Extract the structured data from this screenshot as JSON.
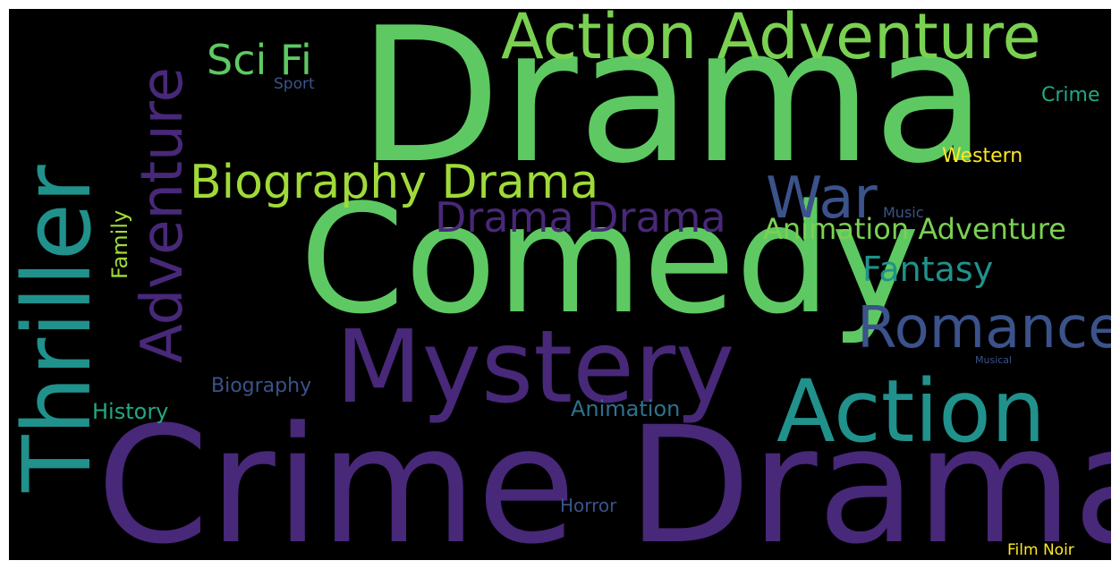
{
  "words": {
    "drama": {
      "text": "Drama",
      "color": "#5ec962"
    },
    "comedy": {
      "text": "Comedy",
      "color": "#5ec962"
    },
    "crime_drama": {
      "text": "Crime Drama",
      "color": "#482878"
    },
    "thriller": {
      "text": "Thriller",
      "color": "#21918c"
    },
    "mystery": {
      "text": "Mystery",
      "color": "#482878"
    },
    "action_adventure": {
      "text": "Action Adventure",
      "color": "#7ad151"
    },
    "action": {
      "text": "Action",
      "color": "#21918c"
    },
    "adventure": {
      "text": "Adventure",
      "color": "#482878"
    },
    "romance": {
      "text": "Romance",
      "color": "#3b528b"
    },
    "biography_drama": {
      "text": "Biography Drama",
      "color": "#a0da39"
    },
    "war": {
      "text": "War",
      "color": "#3b528b"
    },
    "drama_drama": {
      "text": "Drama Drama",
      "color": "#482878"
    },
    "sci_fi": {
      "text": "Sci Fi",
      "color": "#5ec962"
    },
    "animation_adventure": {
      "text": "Animation Adventure",
      "color": "#7ad151"
    },
    "fantasy": {
      "text": "Fantasy",
      "color": "#21918c"
    },
    "family": {
      "text": "Family",
      "color": "#a0da39"
    },
    "history": {
      "text": "History",
      "color": "#22a884"
    },
    "biography": {
      "text": "Biography",
      "color": "#3b528b"
    },
    "animation": {
      "text": "Animation",
      "color": "#2c728e"
    },
    "horror": {
      "text": "Horror",
      "color": "#3b528b"
    },
    "western": {
      "text": "Western",
      "color": "#fde725"
    },
    "crime": {
      "text": "Crime",
      "color": "#22a884"
    },
    "sport": {
      "text": "Sport",
      "color": "#3b528b"
    },
    "music": {
      "text": "Music",
      "color": "#3b528b"
    },
    "musical": {
      "text": "Musical",
      "color": "#3b528b"
    },
    "film_noir": {
      "text": "Film Noir",
      "color": "#fde725"
    }
  }
}
